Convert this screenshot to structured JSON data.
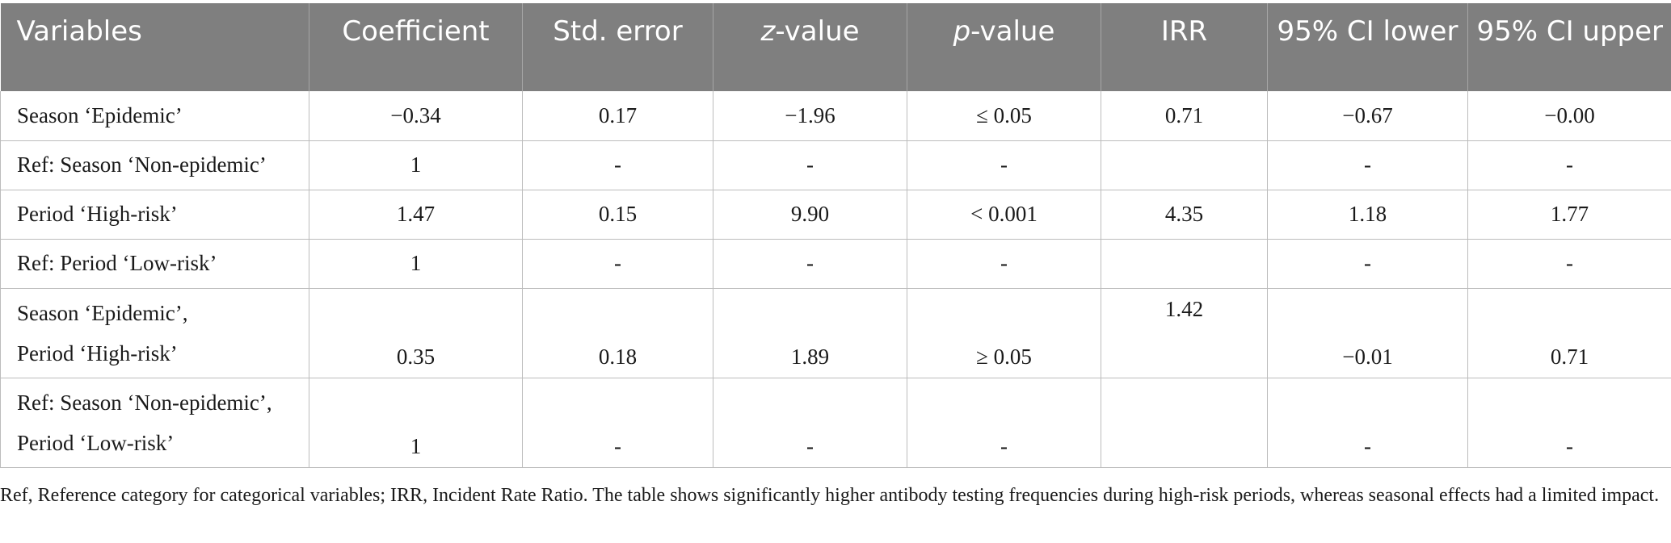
{
  "table": {
    "headers": [
      {
        "pre": "",
        "ital": "",
        "post": "Variables"
      },
      {
        "pre": "",
        "ital": "",
        "post": "Coefficient"
      },
      {
        "pre": "",
        "ital": "",
        "post": "Std. error"
      },
      {
        "pre": "",
        "ital": "z",
        "post": "-value"
      },
      {
        "pre": "",
        "ital": "p",
        "post": "-value"
      },
      {
        "pre": "",
        "ital": "",
        "post": "IRR"
      },
      {
        "pre": "",
        "ital": "",
        "post": "95% CI lower"
      },
      {
        "pre": "",
        "ital": "",
        "post": "95% CI upper"
      }
    ],
    "rows": [
      {
        "label1": "Season ‘Epidemic’",
        "label2": "",
        "coef": "−0.34",
        "se": "0.17",
        "z": "−1.96",
        "p": "≤ 0.05",
        "irr": "0.71",
        "lo": "−0.67",
        "hi": "−0.00"
      },
      {
        "label1": "Ref: Season ‘Non-epidemic’",
        "label2": "",
        "coef": "1",
        "se": "-",
        "z": "-",
        "p": "-",
        "irr": "",
        "lo": "-",
        "hi": "-"
      },
      {
        "label1": "Period ‘High-risk’",
        "label2": "",
        "coef": "1.47",
        "se": "0.15",
        "z": "9.90",
        "p": "< 0.001",
        "irr": "4.35",
        "lo": "1.18",
        "hi": "1.77"
      },
      {
        "label1": "Ref: Period ‘Low-risk’",
        "label2": "",
        "coef": "1",
        "se": "-",
        "z": "-",
        "p": "-",
        "irr": "",
        "lo": "-",
        "hi": "-"
      },
      {
        "label1": "Season ‘Epidemic’,",
        "label2": "Period ‘High-risk’",
        "coef": "0.35",
        "se": "0.18",
        "z": "1.89",
        "p": "≥ 0.05",
        "irr": "1.42",
        "lo": "−0.01",
        "hi": "0.71"
      },
      {
        "label1": "Ref: Season ‘Non-epidemic’,",
        "label2": "Period ‘Low-risk’",
        "coef": "1",
        "se": "-",
        "z": "-",
        "p": "-",
        "irr": "",
        "lo": "-",
        "hi": "-"
      }
    ]
  },
  "caption": "Ref, Reference category for categorical variables; IRR, Incident Rate Ratio. The table shows significantly higher antibody testing frequencies during high-risk periods, whereas seasonal effects had a limited impact."
}
